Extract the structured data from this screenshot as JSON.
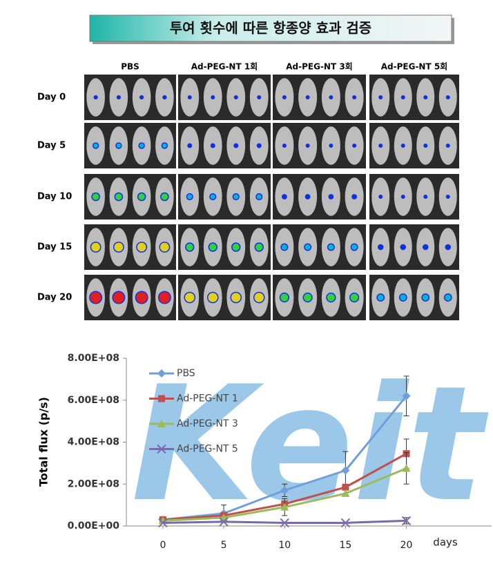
{
  "header": {
    "title": "투여 횟수에 따른 항종양 효과 검증"
  },
  "image_grid": {
    "columns": [
      "PBS",
      "Ad-PEG-NT 1회",
      "Ad-PEG-NT 3회",
      "Ad-PEG-NT 5회"
    ],
    "rows": [
      "Day 0",
      "Day 5",
      "Day 10",
      "Day 15",
      "Day 20"
    ]
  },
  "chart_data": {
    "type": "line",
    "y_label": "Total flux (p/s)",
    "x_label": "days",
    "watermark": "Keit",
    "x": [
      0,
      5,
      10,
      15,
      20
    ],
    "xlim": [
      -3,
      27
    ],
    "xticks": [
      0,
      5,
      10,
      15,
      20
    ],
    "ylim": [
      0,
      800000000
    ],
    "yticks": [
      {
        "value": 0,
        "label": "0.00E+00"
      },
      {
        "value": 200000000,
        "label": "2.00E+08"
      },
      {
        "value": 400000000,
        "label": "4.00E+08"
      },
      {
        "value": 600000000,
        "label": "6.00E+08"
      },
      {
        "value": 800000000,
        "label": "8.00E+08"
      }
    ],
    "series": [
      {
        "name": "PBS",
        "color": "#6f9fd8",
        "marker": "diamond",
        "values": [
          30000000,
          60000000,
          170000000,
          265000000,
          620000000
        ],
        "errors": [
          null,
          40000000,
          30000000,
          90000000,
          95000000
        ]
      },
      {
        "name": "Ad-PEG-NT 1",
        "color": "#c0504d",
        "marker": "square",
        "values": [
          30000000,
          50000000,
          105000000,
          185000000,
          345000000
        ],
        "errors": [
          null,
          null,
          null,
          null,
          70000000
        ]
      },
      {
        "name": "Ad-PEG-NT 3",
        "color": "#9bbb59",
        "marker": "triangle",
        "values": [
          25000000,
          40000000,
          90000000,
          155000000,
          275000000
        ],
        "errors": [
          null,
          null,
          40000000,
          null,
          75000000
        ]
      },
      {
        "name": "Ad-PEG-NT 5",
        "color": "#7b68b0",
        "marker": "x",
        "values": [
          15000000,
          20000000,
          15000000,
          15000000,
          25000000
        ],
        "errors": [
          null,
          null,
          null,
          null,
          15000000
        ]
      }
    ]
  }
}
